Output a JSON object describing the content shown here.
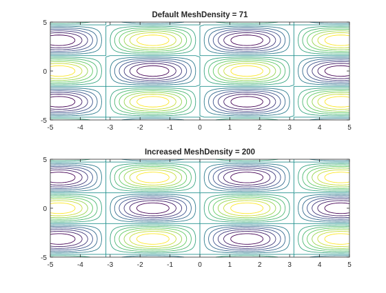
{
  "chart_data": [
    {
      "type": "contour",
      "title": "Default MeshDensity = 71",
      "function": "sin(x)*cos(y)",
      "mesh_density": 71,
      "xlim": [
        -5,
        5
      ],
      "ylim": [
        -5,
        5
      ],
      "xticks": [
        -5,
        -4,
        -3,
        -2,
        -1,
        0,
        1,
        2,
        3,
        4,
        5
      ],
      "yticks": [
        -5,
        0,
        5
      ],
      "levels": [
        -0.857,
        -0.714,
        -0.571,
        -0.429,
        -0.286,
        -0.143,
        0,
        0.143,
        0.286,
        0.429,
        0.571,
        0.714,
        0.857
      ],
      "colormap": [
        "#440154",
        "#3b528b",
        "#21908d",
        "#5ec962",
        "#fde725"
      ],
      "grid": false
    },
    {
      "type": "contour",
      "title": "Increased MeshDensity = 200",
      "function": "sin(x)*cos(y)",
      "mesh_density": 200,
      "xlim": [
        -5,
        5
      ],
      "ylim": [
        -5,
        5
      ],
      "xticks": [
        -5,
        -4,
        -3,
        -2,
        -1,
        0,
        1,
        2,
        3,
        4,
        5
      ],
      "yticks": [
        -5,
        0,
        5
      ],
      "levels": [
        -0.857,
        -0.714,
        -0.571,
        -0.429,
        -0.286,
        -0.143,
        0,
        0.143,
        0.286,
        0.429,
        0.571,
        0.714,
        0.857
      ],
      "colormap": [
        "#440154",
        "#3b528b",
        "#21908d",
        "#5ec962",
        "#fde725"
      ],
      "grid": false
    }
  ]
}
